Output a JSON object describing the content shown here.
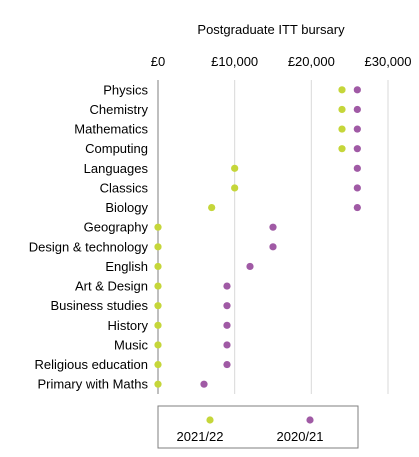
{
  "chart_data": {
    "type": "scatter",
    "title": "Postgraduate ITT bursary",
    "xlim": [
      0,
      30000
    ],
    "x_ticks": [
      "£0",
      "£10,000",
      "£20,000",
      "£30,000"
    ],
    "x_tick_values": [
      0,
      10000,
      20000,
      30000
    ],
    "grid": true,
    "legend_position": "bottom",
    "categories": [
      "Physics",
      "Chemistry",
      "Mathematics",
      "Computing",
      "Languages",
      "Classics",
      "Biology",
      "Geography",
      "Design & technology",
      "English",
      "Art & Design",
      "Business studies",
      "History",
      "Music",
      "Religious education",
      "Primary with Maths"
    ],
    "series": [
      {
        "name": "2021/22",
        "color": "#c5d63a",
        "values": [
          24000,
          24000,
          24000,
          24000,
          10000,
          10000,
          7000,
          0,
          0,
          0,
          0,
          0,
          0,
          0,
          0,
          0
        ]
      },
      {
        "name": "2020/21",
        "color": "#a05aa5",
        "values": [
          26000,
          26000,
          26000,
          26000,
          26000,
          26000,
          26000,
          15000,
          15000,
          12000,
          9000,
          9000,
          9000,
          9000,
          9000,
          6000
        ]
      }
    ]
  }
}
